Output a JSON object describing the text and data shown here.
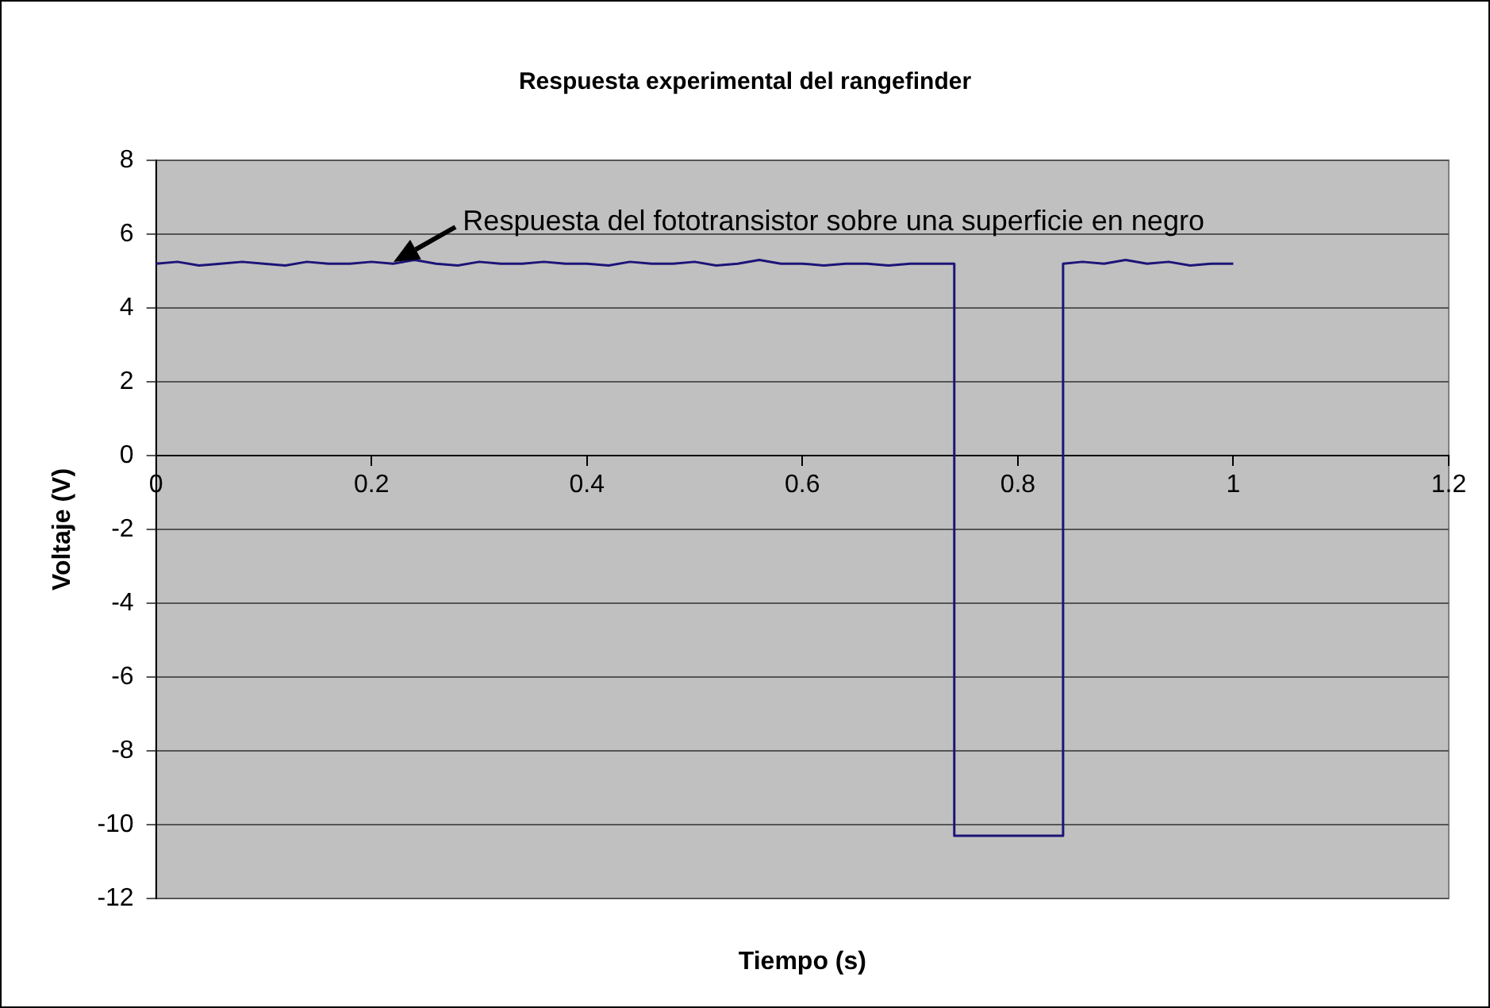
{
  "chart_data": {
    "type": "line",
    "title": "Respuesta experimental del rangefinder",
    "xlabel": "Tiempo (s)",
    "ylabel": "Voltaje (V)",
    "x": [
      0,
      0.02,
      0.04,
      0.06,
      0.08,
      0.1,
      0.12,
      0.14,
      0.16,
      0.18,
      0.2,
      0.22,
      0.24,
      0.26,
      0.28,
      0.3,
      0.32,
      0.34,
      0.36,
      0.38,
      0.4,
      0.42,
      0.44,
      0.46,
      0.48,
      0.5,
      0.52,
      0.54,
      0.56,
      0.58,
      0.6,
      0.62,
      0.64,
      0.66,
      0.68,
      0.7,
      0.72,
      0.741,
      0.741,
      0.842,
      0.842,
      0.86,
      0.88,
      0.9,
      0.92,
      0.94,
      0.96,
      0.98,
      1
    ],
    "series": [
      {
        "color": "#1c1478",
        "values": [
          5.2,
          5.25,
          5.15,
          5.2,
          5.25,
          5.2,
          5.15,
          5.25,
          5.2,
          5.2,
          5.25,
          5.2,
          5.3,
          5.2,
          5.15,
          5.25,
          5.2,
          5.2,
          5.25,
          5.2,
          5.2,
          5.15,
          5.25,
          5.2,
          5.2,
          5.25,
          5.15,
          5.2,
          5.3,
          5.2,
          5.2,
          5.15,
          5.2,
          5.2,
          5.15,
          5.2,
          5.2,
          5.2,
          -10.3,
          -10.3,
          5.2,
          5.25,
          5.2,
          5.3,
          5.2,
          5.25,
          5.15,
          5.2,
          5.2
        ]
      }
    ],
    "xlim": [
      0,
      1.2
    ],
    "xticks": [
      0,
      0.2,
      0.4,
      0.6,
      0.8,
      1,
      1.2
    ],
    "ylim": [
      -12,
      8
    ],
    "yticks": [
      -12,
      -10,
      -8,
      -6,
      -4,
      -2,
      0,
      2,
      4,
      6,
      8
    ],
    "grid": "y",
    "legend": false,
    "marker": "none",
    "line_style": "solid",
    "annotations": [
      {
        "text": "Respuesta del fototransistor sobre una superficie en negro",
        "x": 0.22,
        "y": 5.2
      }
    ]
  }
}
